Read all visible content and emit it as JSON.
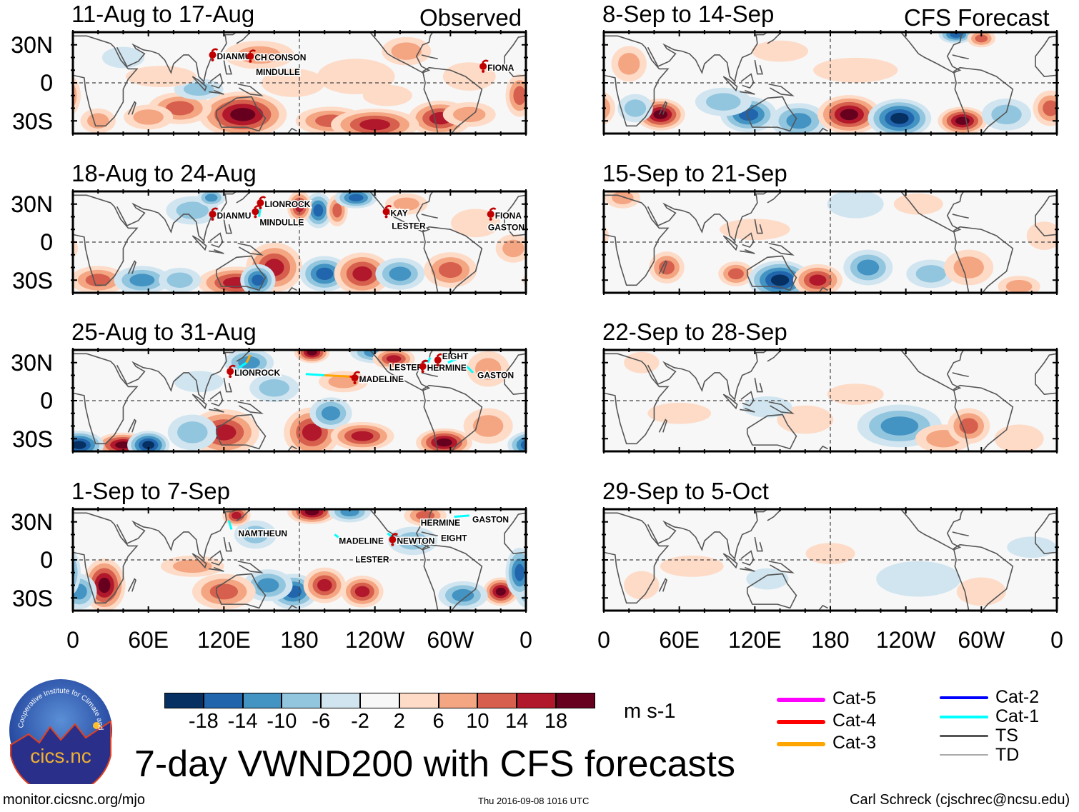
{
  "title": "7-day VWND200 with CFS forecasts",
  "column_labels": {
    "left": "Observed",
    "right": "CFS Forecast"
  },
  "lat_labels": [
    "30N",
    "0",
    "30S"
  ],
  "lon_labels": [
    "0",
    "60E",
    "120E",
    "180",
    "120W",
    "60W",
    "0"
  ],
  "panels": [
    {
      "title": "11-Aug to 17-Aug",
      "column": "left",
      "storms": [
        {
          "name": "DIANMU",
          "lon": 111,
          "lat": 22
        },
        {
          "name": "CH",
          "lon": 141,
          "lat": 21
        },
        {
          "name": "CONSON",
          "lon": 152,
          "lat": 21,
          "no_marker": true
        },
        {
          "name": "MINDULLE",
          "lon": 142,
          "lat": 17,
          "no_marker": true
        },
        {
          "name": "FIONA",
          "lon": 326,
          "lat": 13
        }
      ]
    },
    {
      "title": "18-Aug to 24-Aug",
      "column": "left",
      "storms": [
        {
          "name": "DIANMU",
          "lon": 111,
          "lat": 22
        },
        {
          "name": "LIONROCK",
          "lon": 149,
          "lat": 31
        },
        {
          "name": "MINDULLE",
          "lon": 145,
          "lat": 24
        },
        {
          "name": "KAY",
          "lon": 249,
          "lat": 24
        },
        {
          "name": "LESTER",
          "lon": 250,
          "lat": 21,
          "no_marker": true
        },
        {
          "name": "FIONA",
          "lon": 332,
          "lat": 22
        },
        {
          "name": "GASTON",
          "lon": 338,
          "lat": 20,
          "no_marker": true
        }
      ]
    },
    {
      "title": "25-Aug to 31-Aug",
      "column": "left",
      "storms": [
        {
          "name": "LIONROCK",
          "lon": 125,
          "lat": 23
        },
        {
          "name": "MADELINE",
          "lon": 224,
          "lat": 18
        },
        {
          "name": "LESTER",
          "lon": 248,
          "lat": 20,
          "no_marker": true
        },
        {
          "name": "HERMINE",
          "lon": 278,
          "lat": 27
        },
        {
          "name": "EIGHT",
          "lon": 290,
          "lat": 32
        },
        {
          "name": "GASTON",
          "lon": 318,
          "lat": 21,
          "no_marker": true
        }
      ]
    },
    {
      "title": "1-Sep to 7-Sep",
      "column": "left",
      "storms": [
        {
          "name": "NAMTHEUN",
          "lon": 128,
          "lat": 22,
          "no_marker": true
        },
        {
          "name": "MADELINE",
          "lon": 208,
          "lat": 16,
          "no_marker": true
        },
        {
          "name": "LESTER",
          "lon": 221,
          "lat": 16,
          "no_marker": true
        },
        {
          "name": "NEWTON",
          "lon": 254,
          "lat": 16
        },
        {
          "name": "HERMINE",
          "lon": 273,
          "lat": 23,
          "no_marker": true
        },
        {
          "name": "EIGHT",
          "lon": 289,
          "lat": 33,
          "no_marker": true
        },
        {
          "name": "GASTON",
          "lon": 314,
          "lat": 33,
          "no_marker": true
        }
      ]
    },
    {
      "title": "8-Sep to 14-Sep",
      "column": "right",
      "storms": []
    },
    {
      "title": "15-Sep to 21-Sep",
      "column": "right",
      "storms": []
    },
    {
      "title": "22-Sep to 28-Sep",
      "column": "right",
      "storms": []
    },
    {
      "title": "29-Sep to 5-Oct",
      "column": "right",
      "storms": []
    }
  ],
  "colorbar": {
    "levels": [
      "-18",
      "-14",
      "-10",
      "-6",
      "-2",
      "2",
      "6",
      "10",
      "14",
      "18"
    ],
    "colors": [
      "#053061",
      "#2166ac",
      "#4393c3",
      "#92c5de",
      "#d1e5f0",
      "#f7f7f7",
      "#fddbc7",
      "#f4a582",
      "#d6604d",
      "#b2182b",
      "#67001f"
    ],
    "units": "m s-1"
  },
  "track_legend": [
    {
      "label": "Cat-5",
      "color": "#ff00ff"
    },
    {
      "label": "Cat-4",
      "color": "#ff0000"
    },
    {
      "label": "Cat-3",
      "color": "#ffa500"
    },
    {
      "label": "Cat-2",
      "color": "#0000ff"
    },
    {
      "label": "Cat-1",
      "color": "#00ffff"
    },
    {
      "label": "TS",
      "color": "#555555"
    },
    {
      "label": "TD",
      "color": "#aaaaaa"
    }
  ],
  "logo": {
    "name": "cics.nc",
    "ring_text": "Cooperative Institute for Climate and Satellites"
  },
  "footer": {
    "url": "monitor.cicsnc.org/mjo",
    "timestamp": "Thu 2016-09-08 1016 UTC",
    "author": "Carl Schreck (cjschrec@ncsu.edu)"
  }
}
